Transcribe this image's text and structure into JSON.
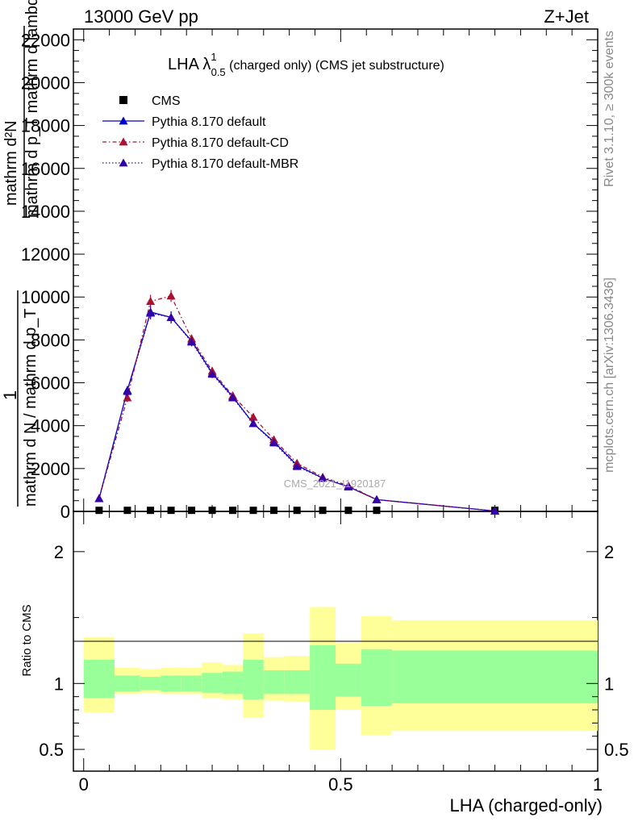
{
  "header": {
    "energy": "13000 GeV pp",
    "process": "Z+Jet",
    "plot_title_prefix": "LHA λ",
    "plot_title_sup": "1",
    "plot_title_sub": "0.5",
    "plot_title_suffix": " (charged only) (CMS jet substructure)",
    "analysis_watermark": "CMS_2021_I1920187",
    "rivet_label": "Rivet 3.1.10, ≥ 300k events",
    "mcplots_label": "mcplots.cern.ch [arXiv:1306.3436]"
  },
  "colors": {
    "default": "#0000cc",
    "cd": "#aa1133",
    "mbr": "#3300aa",
    "band_inner": "#99ff99",
    "band_outer": "#ffff99",
    "cms": "#000000"
  },
  "chart_data": [
    {
      "type": "line",
      "ylabel_top": "1",
      "ylabel_frac_num": "mathrm d²N",
      "ylabel_frac_den": "mathrm d p_T mathrm d lambda",
      "ylabel_lower": "mathrm d N / mathrm d p_T",
      "ylim": [
        0,
        22500
      ],
      "yticks": [
        0,
        2000,
        4000,
        6000,
        8000,
        10000,
        12000,
        14000,
        16000,
        18000,
        20000,
        22000
      ],
      "ytick_labels": [
        "0",
        "2000",
        "4000",
        "6000",
        "8000",
        "10000",
        "12000",
        "14000",
        "16000",
        "18000",
        "20000",
        "22000"
      ],
      "xlim": [
        -0.02,
        1.0
      ],
      "legend_position": "top-left",
      "series": [
        {
          "name": "CMS",
          "style": "markers",
          "x": [
            0.03,
            0.085,
            0.13,
            0.17,
            0.21,
            0.25,
            0.29,
            0.33,
            0.37,
            0.415,
            0.465,
            0.515,
            0.57,
            0.8
          ],
          "y": [
            50,
            50,
            50,
            50,
            50,
            50,
            50,
            50,
            50,
            50,
            50,
            50,
            50,
            50
          ]
        },
        {
          "name": "Pythia 8.170 default",
          "style": "solid",
          "x": [
            0.03,
            0.085,
            0.13,
            0.17,
            0.21,
            0.25,
            0.29,
            0.33,
            0.37,
            0.415,
            0.465,
            0.515,
            0.57,
            0.8
          ],
          "y": [
            600,
            5650,
            9300,
            9050,
            7950,
            6450,
            5350,
            4100,
            3250,
            2150,
            1550,
            1150,
            550,
            20
          ],
          "err": [
            60,
            200,
            300,
            280,
            200,
            180,
            160,
            140,
            120,
            100,
            80,
            70,
            50,
            10
          ]
        },
        {
          "name": "Pythia 8.170 default-CD",
          "style": "dashdot",
          "x": [
            0.03,
            0.085,
            0.13,
            0.17,
            0.21,
            0.25,
            0.29,
            0.33,
            0.37,
            0.415,
            0.465,
            0.515,
            0.57,
            0.8
          ],
          "y": [
            600,
            5300,
            9800,
            10050,
            8050,
            6550,
            5400,
            4400,
            3350,
            2250,
            1600,
            1200,
            550,
            20
          ],
          "err": [
            60,
            200,
            300,
            280,
            200,
            180,
            160,
            140,
            120,
            100,
            80,
            70,
            50,
            10
          ]
        },
        {
          "name": "Pythia 8.170 default-MBR",
          "style": "dotted",
          "x": [
            0.03,
            0.085,
            0.13,
            0.17,
            0.21,
            0.25,
            0.29,
            0.33,
            0.37,
            0.415,
            0.465,
            0.515,
            0.57,
            0.8
          ],
          "y": [
            600,
            5600,
            9250,
            9050,
            7900,
            6400,
            5300,
            4100,
            3200,
            2100,
            1550,
            1150,
            550,
            20
          ],
          "err": [
            60,
            200,
            300,
            280,
            200,
            180,
            160,
            140,
            120,
            100,
            80,
            70,
            50,
            10
          ]
        }
      ]
    },
    {
      "type": "area",
      "ylabel": "Ratio to CMS",
      "xlabel": "LHA (charged-only)",
      "ylim": [
        0.335,
        2.305
      ],
      "yticks": [
        0.5,
        1,
        2
      ],
      "ytick_labels": [
        "0.5",
        "1",
        "2"
      ],
      "xlim": [
        -0.02,
        1.0
      ],
      "xticks": [
        0,
        0.5,
        1
      ],
      "xtick_labels": [
        "0",
        "0.5",
        "1"
      ],
      "bins": [
        {
          "x0": 0.0,
          "x1": 0.06,
          "inner": [
            0.89,
            1.18
          ],
          "outer": [
            0.78,
            1.35
          ]
        },
        {
          "x0": 0.06,
          "x1": 0.11,
          "inner": [
            0.94,
            1.06
          ],
          "outer": [
            0.92,
            1.12
          ]
        },
        {
          "x0": 0.11,
          "x1": 0.15,
          "inner": [
            0.95,
            1.05
          ],
          "outer": [
            0.93,
            1.11
          ]
        },
        {
          "x0": 0.15,
          "x1": 0.19,
          "inner": [
            0.94,
            1.06
          ],
          "outer": [
            0.92,
            1.12
          ]
        },
        {
          "x0": 0.19,
          "x1": 0.23,
          "inner": [
            0.94,
            1.06
          ],
          "outer": [
            0.92,
            1.12
          ]
        },
        {
          "x0": 0.23,
          "x1": 0.27,
          "inner": [
            0.93,
            1.08
          ],
          "outer": [
            0.89,
            1.16
          ]
        },
        {
          "x0": 0.27,
          "x1": 0.31,
          "inner": [
            0.92,
            1.09
          ],
          "outer": [
            0.88,
            1.14
          ]
        },
        {
          "x0": 0.31,
          "x1": 0.35,
          "inner": [
            0.88,
            1.18
          ],
          "outer": [
            0.74,
            1.38
          ]
        },
        {
          "x0": 0.35,
          "x1": 0.39,
          "inner": [
            0.92,
            1.1
          ],
          "outer": [
            0.87,
            1.2
          ]
        },
        {
          "x0": 0.39,
          "x1": 0.44,
          "inner": [
            0.92,
            1.1
          ],
          "outer": [
            0.86,
            1.21
          ]
        },
        {
          "x0": 0.44,
          "x1": 0.49,
          "inner": [
            0.8,
            1.29
          ],
          "outer": [
            0.5,
            1.58
          ]
        },
        {
          "x0": 0.49,
          "x1": 0.54,
          "inner": [
            0.9,
            1.15
          ],
          "outer": [
            0.8,
            1.31
          ]
        },
        {
          "x0": 0.54,
          "x1": 0.6,
          "inner": [
            0.83,
            1.26
          ],
          "outer": [
            0.61,
            1.51
          ]
        },
        {
          "x0": 0.6,
          "x1": 1.0,
          "inner": [
            0.85,
            1.25
          ],
          "outer": [
            0.64,
            1.48
          ]
        }
      ]
    }
  ]
}
